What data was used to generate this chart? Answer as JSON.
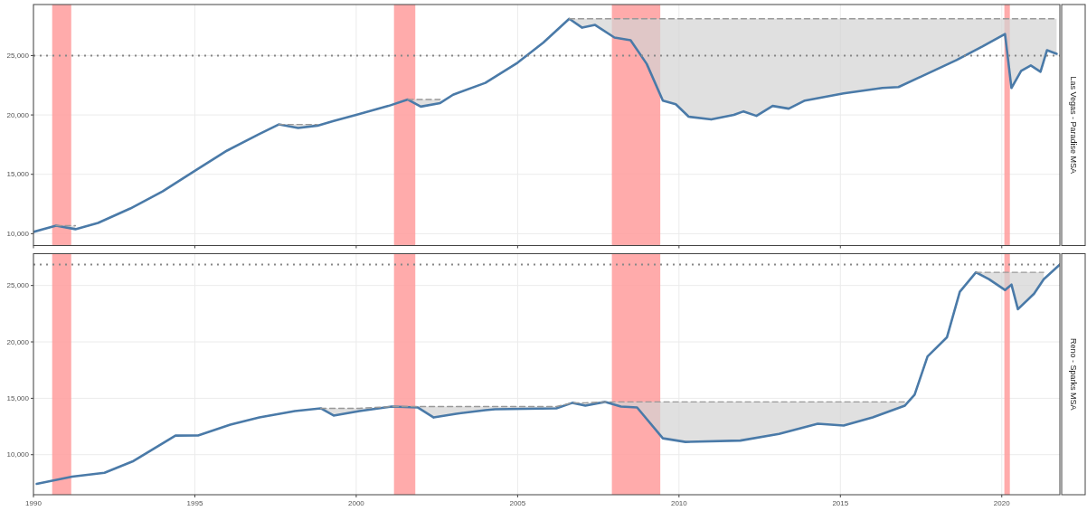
{
  "chart_data": [
    {
      "type": "line",
      "y2label": "Las Vegas - Paradise MSA",
      "xlim": [
        1990,
        2021.8
      ],
      "ylim": [
        9000,
        29300
      ],
      "xticks": [
        1990,
        1995,
        2000,
        2005,
        2010,
        2015,
        2020
      ],
      "yticks": [
        {
          "value": 10000,
          "label": "10,000"
        },
        {
          "value": 15000,
          "label": "15,000"
        },
        {
          "value": 20000,
          "label": "20,000"
        },
        {
          "value": 25000,
          "label": "25,000"
        }
      ],
      "tick_labels": "y",
      "grid": true,
      "x": [
        1990.0,
        1990.7,
        1991.3,
        1992.0,
        1993.0,
        1994.0,
        1995.0,
        1996.0,
        1997.0,
        1997.6,
        1998.2,
        1998.8,
        1999.3,
        2000.0,
        2001.0,
        2001.6,
        2002.0,
        2002.6,
        2003.0,
        2004.0,
        2005.0,
        2005.8,
        2006.6,
        2007.0,
        2007.4,
        2008.0,
        2008.5,
        2009.0,
        2009.5,
        2009.9,
        2010.3,
        2011.0,
        2011.7,
        2012.0,
        2012.4,
        2012.9,
        2013.4,
        2013.9,
        2015.1,
        2016.3,
        2016.8,
        2018.0,
        2018.6,
        2019.4,
        2020.1,
        2020.3,
        2020.6,
        2020.9,
        2021.2,
        2021.4,
        2021.7
      ],
      "series": [
        {
          "color": "#4a7aa8",
          "values": [
            10150,
            10680,
            10380,
            10900,
            12120,
            13560,
            15300,
            17000,
            18400,
            19200,
            18900,
            19100,
            19500,
            20000,
            20760,
            21300,
            20700,
            21000,
            21700,
            22700,
            24400,
            26100,
            28100,
            27350,
            27580,
            26520,
            26290,
            24300,
            21200,
            20900,
            19850,
            19620,
            20000,
            20300,
            19920,
            20760,
            20530,
            21210,
            21820,
            22270,
            22350,
            23860,
            24620,
            25760,
            26820,
            22270,
            23710,
            24170,
            23640,
            25450,
            25150
          ],
          "lower": [
            null,
            10680,
            10380,
            null,
            null,
            null,
            null,
            null,
            null,
            19200,
            18900,
            19100,
            null,
            null,
            null,
            21300,
            20700,
            21000,
            null,
            null,
            null,
            null,
            28100,
            27350,
            27580,
            26520,
            26290,
            24300,
            21200,
            20900,
            19850,
            19620,
            20000,
            20300,
            19920,
            20760,
            20530,
            21210,
            21820,
            22270,
            22350,
            23860,
            24620,
            25760,
            26820,
            22270,
            23710,
            24170,
            23640,
            25450,
            25150
          ],
          "upper": [
            null,
            10680,
            10680,
            null,
            null,
            null,
            null,
            null,
            null,
            19200,
            19200,
            19200,
            null,
            null,
            null,
            21300,
            21300,
            21300,
            null,
            null,
            null,
            null,
            28100,
            28100,
            28100,
            28100,
            28100,
            28100,
            28100,
            28100,
            28100,
            28100,
            28100,
            28100,
            28100,
            28100,
            28100,
            28100,
            28100,
            28100,
            28100,
            28100,
            28100,
            28100,
            28100,
            28100,
            28100,
            28100,
            28100,
            28100,
            28100
          ]
        },
        {
          "type": "line",
          "color": "#999999",
          "line_style": "dashed",
          "values": [
            null,
            10680,
            10680,
            null,
            null,
            null,
            null,
            null,
            null,
            19200,
            19200,
            19200,
            null,
            null,
            null,
            21300,
            21300,
            21300,
            null,
            null,
            null,
            null,
            28100,
            28100,
            28100,
            28100,
            28100,
            28100,
            28100,
            28100,
            28100,
            28100,
            28100,
            28100,
            28100,
            28100,
            28100,
            28100,
            28100,
            28100,
            28100,
            28100,
            28100,
            28100,
            28100,
            28100,
            28100,
            28100,
            28100,
            28100,
            28100
          ]
        }
      ],
      "bands": [
        {
          "axis": "x",
          "from": 1990.58,
          "to": 1991.17,
          "color": "#ff9c9c"
        },
        {
          "axis": "x",
          "from": 2001.17,
          "to": 2001.83,
          "color": "#ff9c9c"
        },
        {
          "axis": "x",
          "from": 2007.92,
          "to": 2009.42,
          "color": "#ff9c9c"
        },
        {
          "axis": "x",
          "from": 2020.08,
          "to": 2020.25,
          "color": "#ff9c9c"
        }
      ],
      "ref_lines": [
        {
          "axis": "y",
          "value": 25000,
          "color": "#888888",
          "line_style": "dotted"
        }
      ]
    },
    {
      "type": "line",
      "y2label": "Reno - Sparks MSA",
      "xlim": [
        1990,
        2021.8
      ],
      "ylim": [
        6450,
        27820
      ],
      "xticks": [
        1990,
        1995,
        2000,
        2005,
        2010,
        2015,
        2020
      ],
      "yticks": [
        {
          "value": 10000,
          "label": "10,000"
        },
        {
          "value": 15000,
          "label": "15,000"
        },
        {
          "value": 20000,
          "label": "20,000"
        },
        {
          "value": 25000,
          "label": "25,000"
        }
      ],
      "grid": true,
      "x": [
        1990.1,
        1991.2,
        1992.2,
        1993.1,
        1994.4,
        1995.1,
        1996.1,
        1997.0,
        1998.1,
        1998.9,
        1999.3,
        2000.1,
        2001.1,
        2001.9,
        2002.4,
        2003.1,
        2004.0,
        2004.3,
        2006.2,
        2006.7,
        2007.1,
        2007.7,
        2008.2,
        2008.7,
        2009.5,
        2010.2,
        2011.9,
        2013.1,
        2014.3,
        2015.1,
        2016.0,
        2017.0,
        2017.3,
        2017.7,
        2018.3,
        2018.7,
        2019.2,
        2019.6,
        2020.1,
        2020.3,
        2020.5,
        2021.0,
        2021.3,
        2021.8
      ],
      "series": [
        {
          "color": "#4a7aa8",
          "values": [
            7420,
            8060,
            8390,
            9440,
            11690,
            11700,
            12660,
            13300,
            13870,
            14110,
            13470,
            13870,
            14270,
            14190,
            13300,
            13630,
            13950,
            14030,
            14110,
            14600,
            14350,
            14680,
            14270,
            14190,
            11450,
            11130,
            11250,
            11850,
            12740,
            12580,
            13310,
            14350,
            15320,
            18710,
            20400,
            24440,
            26170,
            25560,
            24600,
            25080,
            22900,
            24270,
            25560,
            26860
          ],
          "lower": [
            null,
            null,
            null,
            null,
            null,
            null,
            null,
            null,
            null,
            14110,
            13470,
            13870,
            14270,
            14190,
            13300,
            13630,
            13950,
            14030,
            14110,
            14600,
            14350,
            14680,
            14270,
            14190,
            11450,
            11130,
            11250,
            11850,
            12740,
            12580,
            13310,
            14350,
            null,
            null,
            null,
            null,
            26170,
            25560,
            24600,
            25080,
            22900,
            24270,
            25560,
            null
          ],
          "upper": [
            null,
            null,
            null,
            null,
            null,
            null,
            null,
            null,
            null,
            14110,
            14110,
            14110,
            14270,
            14270,
            14270,
            14270,
            14270,
            14270,
            14270,
            14600,
            14600,
            14680,
            14680,
            14680,
            14680,
            14680,
            14680,
            14680,
            14680,
            14680,
            14680,
            14680,
            null,
            null,
            null,
            null,
            26170,
            26170,
            26170,
            26170,
            26170,
            26170,
            26170,
            null
          ]
        },
        {
          "type": "line",
          "color": "#999999",
          "line_style": "dashed",
          "values": [
            null,
            null,
            null,
            null,
            null,
            null,
            null,
            null,
            null,
            14110,
            14110,
            14110,
            14270,
            14270,
            14270,
            14270,
            14270,
            14270,
            14270,
            14600,
            14600,
            14680,
            14680,
            14680,
            14680,
            14680,
            14680,
            14680,
            14680,
            14680,
            14680,
            14680,
            null,
            null,
            null,
            null,
            26170,
            26170,
            26170,
            26170,
            26170,
            26170,
            26170,
            null
          ]
        }
      ],
      "bands": [
        {
          "axis": "x",
          "from": 1990.58,
          "to": 1991.17,
          "color": "#ff9c9c"
        },
        {
          "axis": "x",
          "from": 2001.17,
          "to": 2001.83,
          "color": "#ff9c9c"
        },
        {
          "axis": "x",
          "from": 2007.92,
          "to": 2009.42,
          "color": "#ff9c9c"
        },
        {
          "axis": "x",
          "from": 2020.08,
          "to": 2020.25,
          "color": "#ff9c9c"
        }
      ],
      "ref_lines": [
        {
          "axis": "y",
          "value": 26860,
          "color": "#888888",
          "line_style": "dotted"
        }
      ]
    }
  ]
}
